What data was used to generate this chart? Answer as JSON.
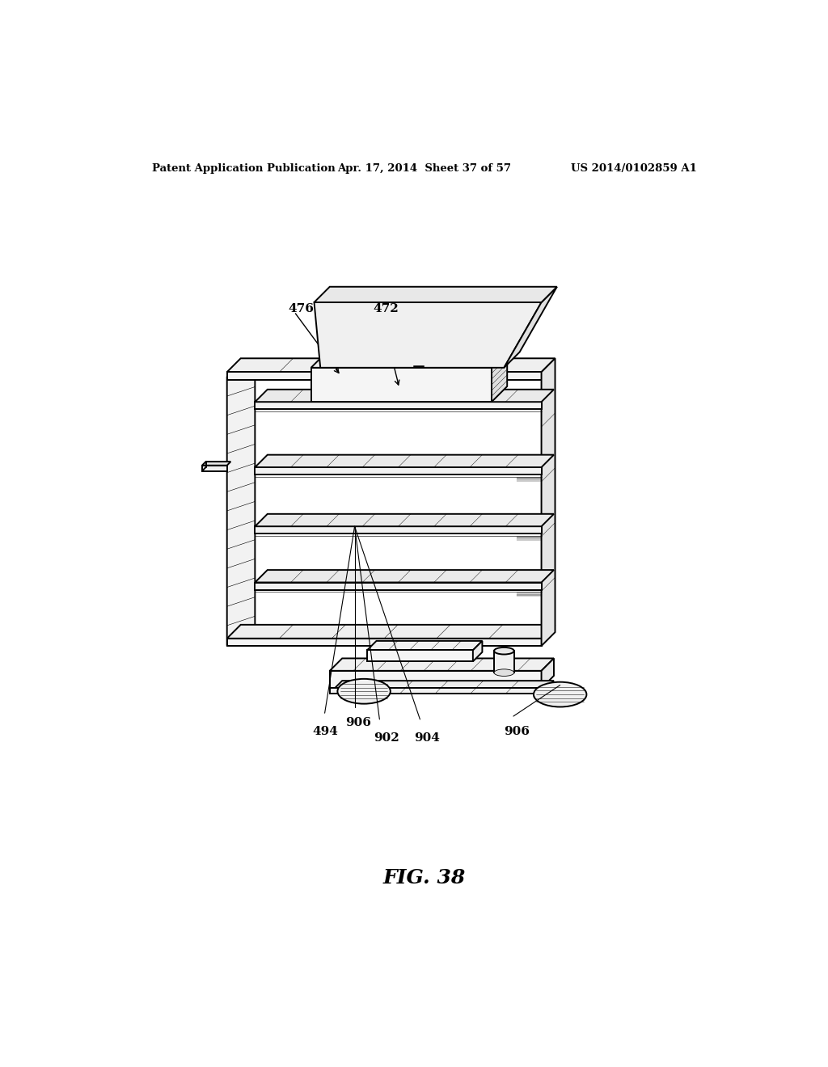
{
  "background_color": "#ffffff",
  "header_left": "Patent Application Publication",
  "header_center": "Apr. 17, 2014  Sheet 37 of 57",
  "header_right": "US 2014/0102859 A1",
  "figure_label": "FIG. 38",
  "text_color": "#000000",
  "line_color": "#000000",
  "lw_main": 1.4,
  "lw_thin": 0.6,
  "lw_med": 1.0
}
